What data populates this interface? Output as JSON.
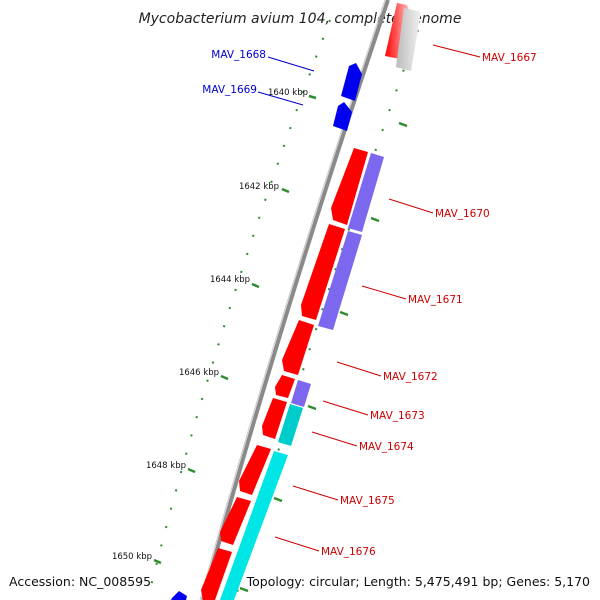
{
  "title": "Mycobacterium avium 104, complete genome",
  "accession": "Accession: NC_008595",
  "topology": "Topology: circular; Length: 5,475,491 bp; Genes: 5,170",
  "ticks": [
    "1640 kbp",
    "1642 kbp",
    "1644 kbp",
    "1646 kbp",
    "1648 kbp",
    "1650 kbp"
  ],
  "colors": {
    "backbone": "#8a8a8a",
    "forward_cds": "#ff0000",
    "reverse_cds": "#0000ee",
    "blast_hit_purple": "#7b68ee",
    "blast_hit_cyan": "#00e5e5",
    "label_forward": "#cc0000",
    "label_reverse": "#0000cc",
    "tick_mark": "#2e8b2e"
  },
  "genes": [
    {
      "id": "MAV_1667",
      "strand": "forward"
    },
    {
      "id": "MAV_1668",
      "strand": "reverse"
    },
    {
      "id": "MAV_1669",
      "strand": "reverse"
    },
    {
      "id": "MAV_1670",
      "strand": "forward"
    },
    {
      "id": "MAV_1671",
      "strand": "forward"
    },
    {
      "id": "MAV_1672",
      "strand": "forward"
    },
    {
      "id": "MAV_1673",
      "strand": "forward"
    },
    {
      "id": "MAV_1674",
      "strand": "forward"
    },
    {
      "id": "MAV_1675",
      "strand": "forward"
    },
    {
      "id": "MAV_1676",
      "strand": "forward"
    }
  ]
}
